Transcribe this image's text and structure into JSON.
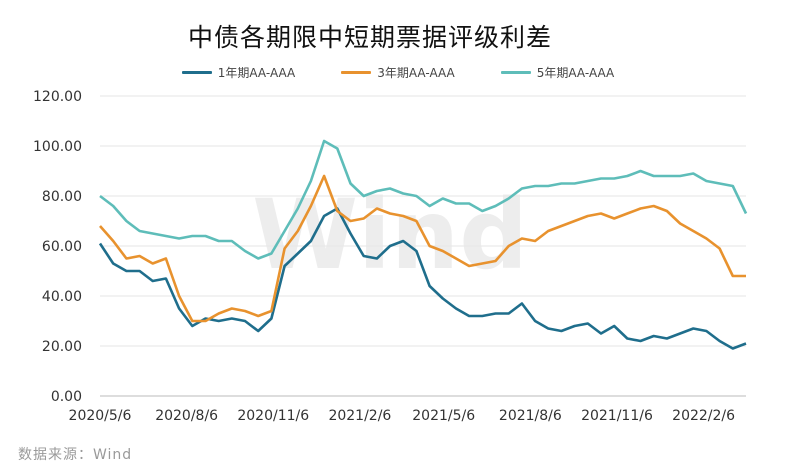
{
  "chart_data": {
    "type": "line",
    "title": "中债各期限中短期票据评级利差",
    "ylim": [
      0,
      120
    ],
    "yticks": [
      "0.00",
      "20.00",
      "40.00",
      "60.00",
      "80.00",
      "100.00",
      "120.00"
    ],
    "xticks": [
      "2020/5/6",
      "2020/8/6",
      "2020/11/6",
      "2021/2/6",
      "2021/5/6",
      "2021/8/6",
      "2021/11/6",
      "2022/2/6"
    ],
    "x": [
      "2020/5/6",
      "2020/5/20",
      "2020/6/3",
      "2020/6/17",
      "2020/7/1",
      "2020/7/15",
      "2020/7/29",
      "2020/8/12",
      "2020/8/26",
      "2020/9/9",
      "2020/9/23",
      "2020/10/7",
      "2020/10/21",
      "2020/11/4",
      "2020/11/18",
      "2020/12/2",
      "2020/12/16",
      "2020/12/30",
      "2021/1/13",
      "2021/1/27",
      "2021/2/10",
      "2021/2/24",
      "2021/3/10",
      "2021/3/24",
      "2021/4/7",
      "2021/4/21",
      "2021/5/5",
      "2021/5/19",
      "2021/6/2",
      "2021/6/16",
      "2021/6/30",
      "2021/7/14",
      "2021/7/28",
      "2021/8/11",
      "2021/8/25",
      "2021/9/8",
      "2021/9/22",
      "2021/10/6",
      "2021/10/20",
      "2021/11/3",
      "2021/11/17",
      "2021/12/1",
      "2021/12/15",
      "2021/12/29",
      "2022/1/12",
      "2022/1/26",
      "2022/2/9",
      "2022/2/23",
      "2022/3/9",
      "2022/3/23"
    ],
    "series": [
      {
        "name": "1年期AA-AAA",
        "color": "#1f6e8c",
        "values": [
          61,
          53,
          50,
          50,
          46,
          47,
          35,
          28,
          31,
          30,
          31,
          30,
          26,
          31,
          52,
          57,
          62,
          72,
          75,
          65,
          56,
          55,
          60,
          62,
          58,
          44,
          39,
          35,
          32,
          32,
          33,
          33,
          37,
          30,
          27,
          26,
          28,
          29,
          25,
          28,
          23,
          22,
          24,
          23,
          25,
          27,
          26,
          22,
          19,
          21
        ]
      },
      {
        "name": "3年期AA-AAA",
        "color": "#e8922e",
        "values": [
          68,
          62,
          55,
          56,
          53,
          55,
          40,
          30,
          30,
          33,
          35,
          34,
          32,
          34,
          59,
          66,
          76,
          88,
          74,
          70,
          71,
          75,
          73,
          72,
          70,
          60,
          58,
          55,
          52,
          53,
          54,
          60,
          63,
          62,
          66,
          68,
          70,
          72,
          73,
          71,
          73,
          75,
          76,
          74,
          69,
          66,
          63,
          59,
          48,
          48
        ]
      },
      {
        "name": "5年期AA-AAA",
        "color": "#5ebdb9",
        "values": [
          80,
          76,
          70,
          66,
          65,
          64,
          63,
          64,
          64,
          62,
          62,
          58,
          55,
          57,
          66,
          75,
          86,
          102,
          99,
          85,
          80,
          82,
          83,
          81,
          80,
          76,
          79,
          77,
          77,
          74,
          76,
          79,
          83,
          84,
          84,
          85,
          85,
          86,
          87,
          87,
          88,
          90,
          88,
          88,
          88,
          89,
          86,
          85,
          84,
          73
        ]
      }
    ],
    "legend": "top",
    "grid": "horizontal",
    "watermark": "Wind"
  },
  "footer": {
    "source": "数据来源：Wind"
  }
}
